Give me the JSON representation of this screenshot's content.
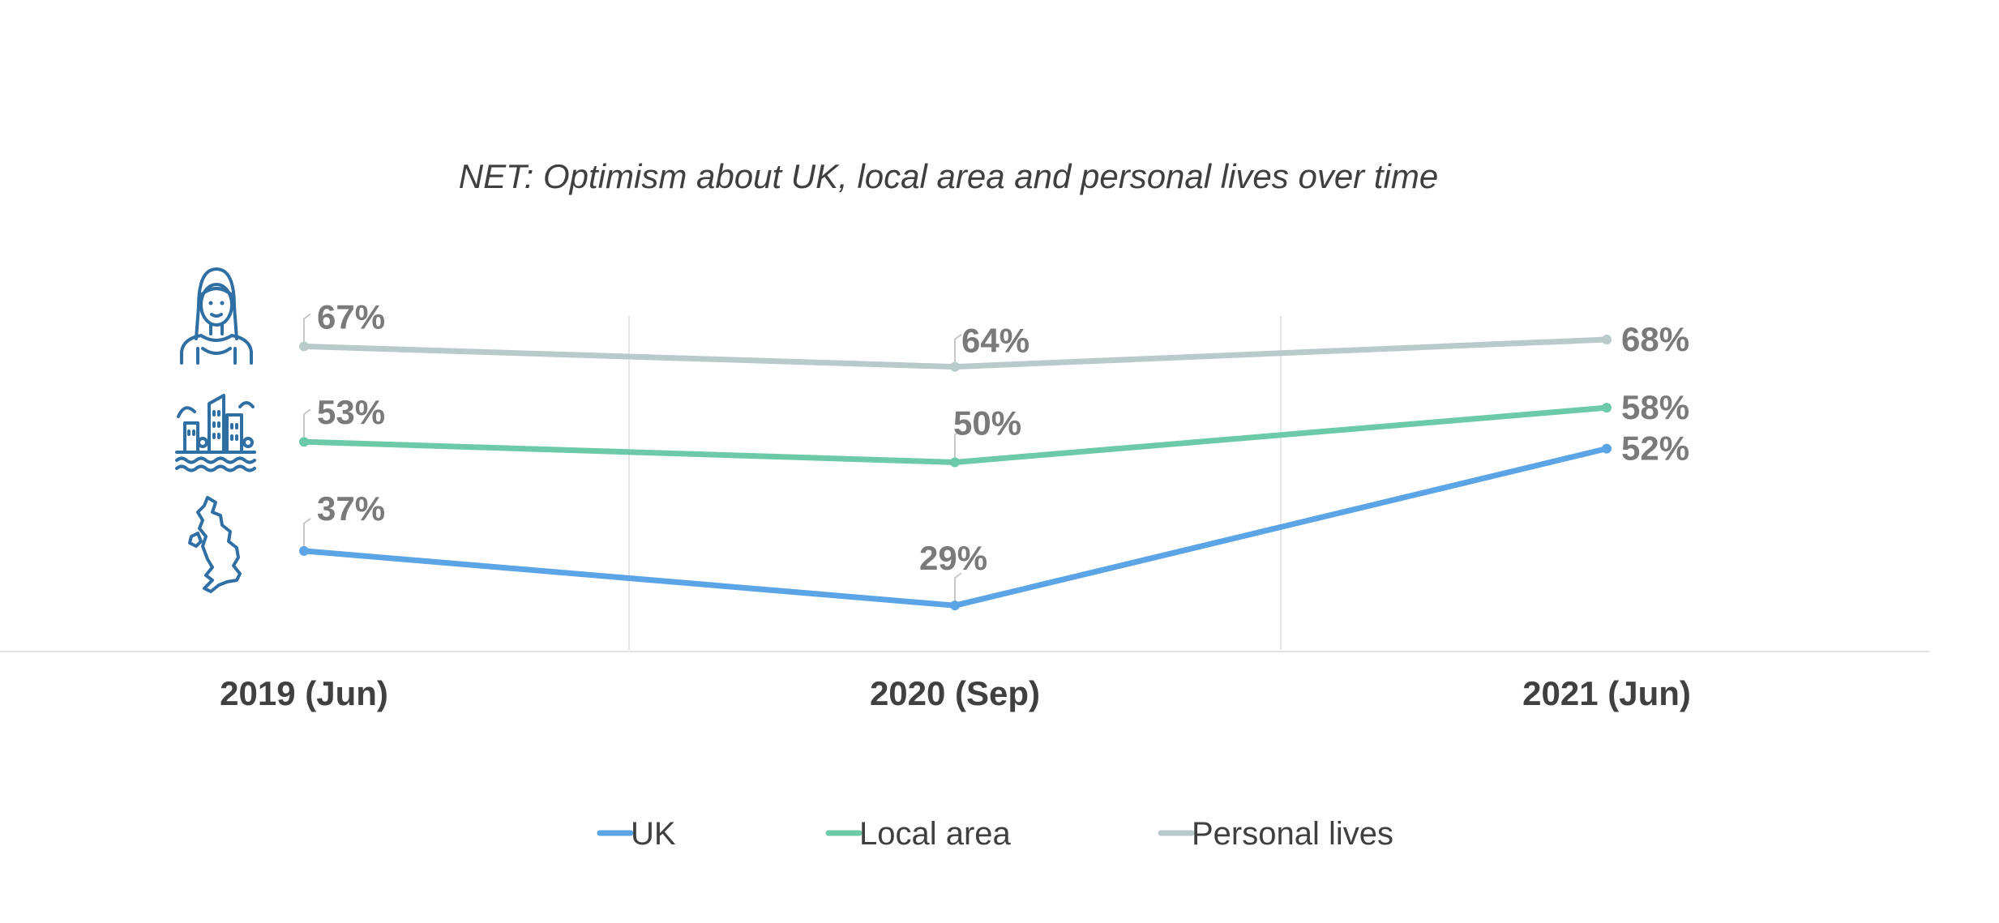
{
  "chart_data": {
    "type": "line",
    "title": "NET: Optimism about UK, local area and personal lives over time",
    "categories": [
      "2019 (Jun)",
      "2020 (Sep)",
      "2021 (Jun)"
    ],
    "series": [
      {
        "name": "UK",
        "values": [
          37,
          29,
          52
        ],
        "labels": [
          "37%",
          "29%",
          "52%"
        ],
        "color": "#5ba4e5"
      },
      {
        "name": "Local area",
        "values": [
          53,
          50,
          58
        ],
        "labels": [
          "53%",
          "50%",
          "58%"
        ],
        "color": "#6ccaa9"
      },
      {
        "name": "Personal lives",
        "values": [
          67,
          64,
          68
        ],
        "labels": [
          "67%",
          "64%",
          "68%"
        ],
        "color": "#b8cac9"
      }
    ],
    "xlabel": "",
    "ylabel": "",
    "ylim": [
      15,
      80
    ],
    "grid": "vertical",
    "legend": "bottom",
    "row_icons": [
      "person-icon",
      "city-icon",
      "uk-map-icon"
    ]
  }
}
